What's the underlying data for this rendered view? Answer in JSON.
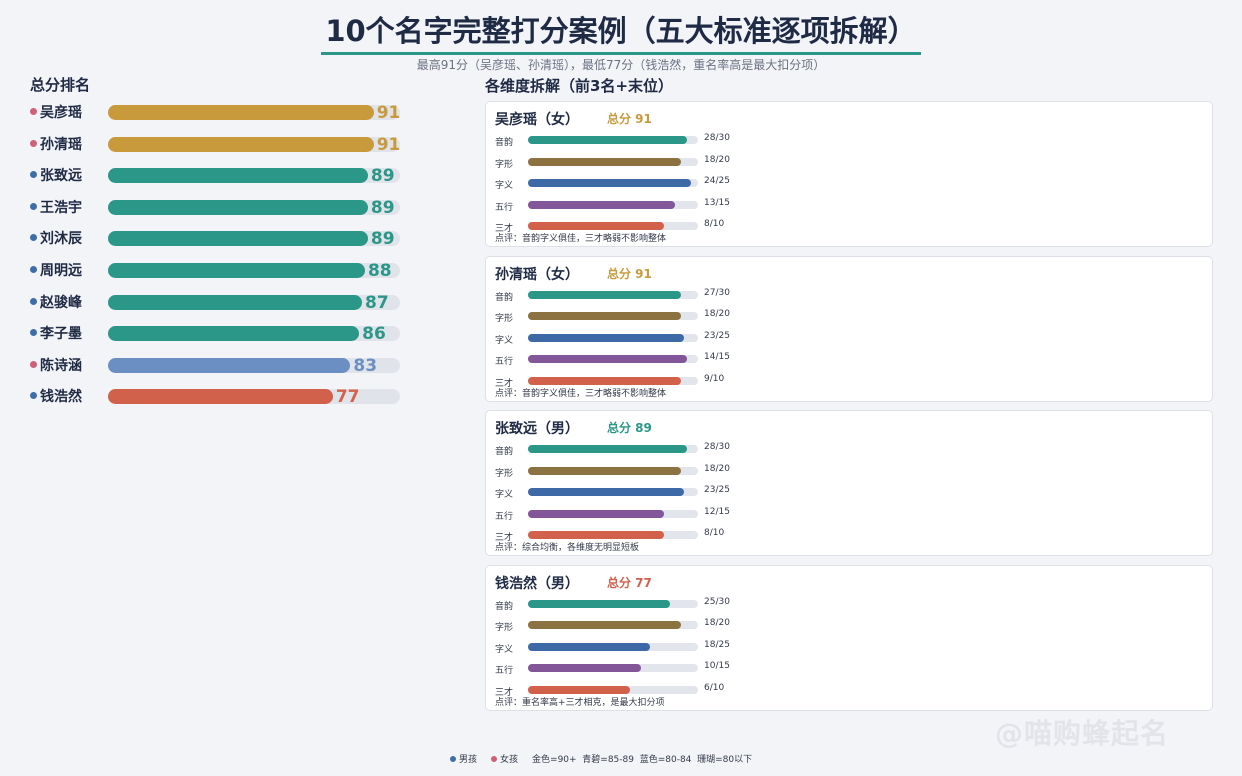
{
  "title": "10个名字完整打分案例（五大标准逐项拆解）",
  "subtitle": "最高91分（吴彦瑶、孙清瑶），最低77分（钱浩然，重名率高是最大扣分项）",
  "colors": {
    "gold": "#c99a3c",
    "teal": "#2a9788",
    "blue": "#6b8fc2",
    "coral": "#d2614c",
    "boy": "#3d6ea8",
    "girl": "#d0607a",
    "yinyun": "#2a9788",
    "zixing": "#8c7141",
    "ziyi": "#3d6aa6",
    "wuxing": "#835599",
    "sancai": "#d2614c"
  },
  "footer": {
    "boy": "男孩",
    "girl": "女孩",
    "scale": "金色=90+  青碧=85-89  蓝色=80-84  珊瑚=80以下"
  },
  "watermark": "@喵购蜂起名",
  "chart_data": [
    {
      "type": "bar",
      "title": "总分排名",
      "max": 100,
      "categories": [
        "吴彦瑶",
        "孙清瑶",
        "张致远",
        "王浩宇",
        "刘沐辰",
        "周明远",
        "赵骏峰",
        "李子墨",
        "陈诗涵",
        "钱浩然"
      ],
      "values": [
        91,
        91,
        89,
        89,
        89,
        88,
        87,
        86,
        83,
        77
      ],
      "gender": [
        "girl",
        "girl",
        "boy",
        "boy",
        "boy",
        "boy",
        "boy",
        "boy",
        "girl",
        "boy"
      ]
    },
    {
      "type": "bar",
      "title": "各维度拆解（前3名+末位）",
      "cards": [
        {
          "name": "吴彦瑶（女）",
          "total_label": "总分 91",
          "total": 91,
          "comment": "点评：音韵字义俱佳，三才略弱不影响整体",
          "dims": [
            {
              "label": "音韵",
              "value": 28,
              "max": 30,
              "text": "28/30"
            },
            {
              "label": "字形",
              "value": 18,
              "max": 20,
              "text": "18/20"
            },
            {
              "label": "字义",
              "value": 24,
              "max": 25,
              "text": "24/25"
            },
            {
              "label": "五行",
              "value": 13,
              "max": 15,
              "text": "13/15"
            },
            {
              "label": "三才",
              "value": 8,
              "max": 10,
              "text": "8/10"
            }
          ]
        },
        {
          "name": "孙清瑶（女）",
          "total_label": "总分 91",
          "total": 91,
          "comment": "点评：音韵字义俱佳，三才略弱不影响整体",
          "dims": [
            {
              "label": "音韵",
              "value": 27,
              "max": 30,
              "text": "27/30"
            },
            {
              "label": "字形",
              "value": 18,
              "max": 20,
              "text": "18/20"
            },
            {
              "label": "字义",
              "value": 23,
              "max": 25,
              "text": "23/25"
            },
            {
              "label": "五行",
              "value": 14,
              "max": 15,
              "text": "14/15"
            },
            {
              "label": "三才",
              "value": 9,
              "max": 10,
              "text": "9/10"
            }
          ]
        },
        {
          "name": "张致远（男）",
          "total_label": "总分 89",
          "total": 89,
          "comment": "点评：综合均衡，各维度无明显短板",
          "dims": [
            {
              "label": "音韵",
              "value": 28,
              "max": 30,
              "text": "28/30"
            },
            {
              "label": "字形",
              "value": 18,
              "max": 20,
              "text": "18/20"
            },
            {
              "label": "字义",
              "value": 23,
              "max": 25,
              "text": "23/25"
            },
            {
              "label": "五行",
              "value": 12,
              "max": 15,
              "text": "12/15"
            },
            {
              "label": "三才",
              "value": 8,
              "max": 10,
              "text": "8/10"
            }
          ]
        },
        {
          "name": "钱浩然（男）",
          "total_label": "总分 77",
          "total": 77,
          "comment": "点评：重名率高+三才相克，是最大扣分项",
          "dims": [
            {
              "label": "音韵",
              "value": 25,
              "max": 30,
              "text": "25/30"
            },
            {
              "label": "字形",
              "value": 18,
              "max": 20,
              "text": "18/20"
            },
            {
              "label": "字义",
              "value": 18,
              "max": 25,
              "text": "18/25"
            },
            {
              "label": "五行",
              "value": 10,
              "max": 15,
              "text": "10/15"
            },
            {
              "label": "三才",
              "value": 6,
              "max": 10,
              "text": "6/10"
            }
          ]
        }
      ]
    }
  ]
}
